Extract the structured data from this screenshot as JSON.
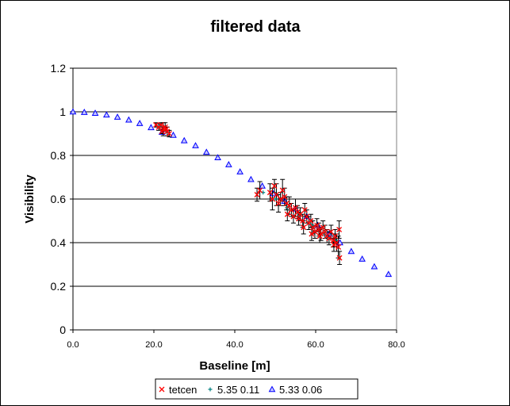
{
  "chart_data": {
    "type": "scatter",
    "title": "filtered data",
    "xlabel": "Baseline [m]",
    "ylabel": "Visibility",
    "xlim": [
      0,
      80
    ],
    "ylim": [
      0,
      1.2
    ],
    "x_ticks": [
      "0.0",
      "20.0",
      "40.0",
      "60.0",
      "80.0"
    ],
    "y_ticks": [
      "0",
      "0.2",
      "0.4",
      "0.6",
      "0.8",
      "1",
      "1.2"
    ],
    "grid": "horizontal",
    "legend_position": "bottom",
    "colors": {
      "tetcen": "#ff0000",
      "s1": "#008080",
      "s2": "#0000ff",
      "errorbar": "#000000"
    },
    "series": [
      {
        "name": "tetcen",
        "marker": "x",
        "points": [
          {
            "x": 20.5,
            "y": 0.94,
            "e": 0.01
          },
          {
            "x": 21.2,
            "y": 0.93,
            "e": 0.015
          },
          {
            "x": 21.8,
            "y": 0.94,
            "e": 0.01
          },
          {
            "x": 22.3,
            "y": 0.92,
            "e": 0.03
          },
          {
            "x": 22.8,
            "y": 0.93,
            "e": 0.02
          },
          {
            "x": 23.3,
            "y": 0.91,
            "e": 0.02
          },
          {
            "x": 23.8,
            "y": 0.9,
            "e": 0.015
          },
          {
            "x": 22.0,
            "y": 0.91,
            "e": 0.01
          },
          {
            "x": 23.0,
            "y": 0.92,
            "e": 0.01
          },
          {
            "x": 45.5,
            "y": 0.62,
            "e": 0.03
          },
          {
            "x": 46.2,
            "y": 0.64,
            "e": 0.04
          },
          {
            "x": 48.7,
            "y": 0.63,
            "e": 0.04
          },
          {
            "x": 49.3,
            "y": 0.6,
            "e": 0.05
          },
          {
            "x": 49.8,
            "y": 0.66,
            "e": 0.03
          },
          {
            "x": 50.3,
            "y": 0.62,
            "e": 0.05
          },
          {
            "x": 50.8,
            "y": 0.58,
            "e": 0.04
          },
          {
            "x": 51.3,
            "y": 0.6,
            "e": 0.03
          },
          {
            "x": 51.8,
            "y": 0.64,
            "e": 0.05
          },
          {
            "x": 52.3,
            "y": 0.61,
            "e": 0.04
          },
          {
            "x": 52.8,
            "y": 0.58,
            "e": 0.03
          },
          {
            "x": 53.5,
            "y": 0.57,
            "e": 0.04
          },
          {
            "x": 54.0,
            "y": 0.55,
            "e": 0.03
          },
          {
            "x": 54.5,
            "y": 0.52,
            "e": 0.03
          },
          {
            "x": 55.0,
            "y": 0.56,
            "e": 0.04
          },
          {
            "x": 55.5,
            "y": 0.54,
            "e": 0.03
          },
          {
            "x": 56.2,
            "y": 0.53,
            "e": 0.03
          },
          {
            "x": 56.8,
            "y": 0.5,
            "e": 0.03
          },
          {
            "x": 57.3,
            "y": 0.55,
            "e": 0.03
          },
          {
            "x": 57.8,
            "y": 0.52,
            "e": 0.03
          },
          {
            "x": 58.3,
            "y": 0.49,
            "e": 0.03
          },
          {
            "x": 58.8,
            "y": 0.5,
            "e": 0.03
          },
          {
            "x": 59.3,
            "y": 0.47,
            "e": 0.03
          },
          {
            "x": 59.8,
            "y": 0.45,
            "e": 0.03
          },
          {
            "x": 60.3,
            "y": 0.48,
            "e": 0.03
          },
          {
            "x": 60.8,
            "y": 0.46,
            "e": 0.03
          },
          {
            "x": 61.3,
            "y": 0.44,
            "e": 0.03
          },
          {
            "x": 61.8,
            "y": 0.47,
            "e": 0.03
          },
          {
            "x": 62.3,
            "y": 0.45,
            "e": 0.03
          },
          {
            "x": 62.8,
            "y": 0.43,
            "e": 0.03
          },
          {
            "x": 63.3,
            "y": 0.42,
            "e": 0.03
          },
          {
            "x": 63.8,
            "y": 0.45,
            "e": 0.03
          },
          {
            "x": 64.3,
            "y": 0.41,
            "e": 0.03
          },
          {
            "x": 64.8,
            "y": 0.43,
            "e": 0.03
          },
          {
            "x": 65.2,
            "y": 0.4,
            "e": 0.04
          },
          {
            "x": 65.6,
            "y": 0.38,
            "e": 0.05
          },
          {
            "x": 65.9,
            "y": 0.33,
            "e": 0.03
          },
          {
            "x": 65.8,
            "y": 0.46,
            "e": 0.04
          },
          {
            "x": 64.5,
            "y": 0.39,
            "e": 0.03
          },
          {
            "x": 59.0,
            "y": 0.44,
            "e": 0.03
          },
          {
            "x": 61.0,
            "y": 0.43,
            "e": 0.03
          },
          {
            "x": 57.0,
            "y": 0.47,
            "e": 0.03
          },
          {
            "x": 55.8,
            "y": 0.51,
            "e": 0.03
          },
          {
            "x": 53.0,
            "y": 0.53,
            "e": 0.03
          }
        ]
      },
      {
        "name": "5.35 0.11",
        "marker": "plus",
        "points": [
          {
            "x": 21.5,
            "y": 0.935
          },
          {
            "x": 23.0,
            "y": 0.915
          },
          {
            "x": 47.0,
            "y": 0.63
          },
          {
            "x": 50.0,
            "y": 0.6
          },
          {
            "x": 53.0,
            "y": 0.56
          },
          {
            "x": 56.0,
            "y": 0.52
          },
          {
            "x": 59.0,
            "y": 0.48
          },
          {
            "x": 62.0,
            "y": 0.44
          },
          {
            "x": 65.0,
            "y": 0.41
          }
        ]
      },
      {
        "name": "5.33 0.06",
        "marker": "triangle",
        "points": [
          {
            "x": 0.0,
            "y": 1.0
          },
          {
            "x": 2.8,
            "y": 0.998
          },
          {
            "x": 5.5,
            "y": 0.994
          },
          {
            "x": 8.3,
            "y": 0.986
          },
          {
            "x": 11.0,
            "y": 0.976
          },
          {
            "x": 13.8,
            "y": 0.963
          },
          {
            "x": 16.5,
            "y": 0.947
          },
          {
            "x": 19.3,
            "y": 0.928
          },
          {
            "x": 22.0,
            "y": 0.907
          },
          {
            "x": 24.8,
            "y": 0.893
          },
          {
            "x": 27.5,
            "y": 0.868
          },
          {
            "x": 30.3,
            "y": 0.845
          },
          {
            "x": 33.0,
            "y": 0.815
          },
          {
            "x": 35.8,
            "y": 0.79
          },
          {
            "x": 38.5,
            "y": 0.758
          },
          {
            "x": 41.3,
            "y": 0.725
          },
          {
            "x": 44.0,
            "y": 0.69
          },
          {
            "x": 46.8,
            "y": 0.66
          },
          {
            "x": 49.5,
            "y": 0.625
          },
          {
            "x": 52.3,
            "y": 0.59
          },
          {
            "x": 55.0,
            "y": 0.555
          },
          {
            "x": 57.8,
            "y": 0.52
          },
          {
            "x": 60.5,
            "y": 0.48
          },
          {
            "x": 63.3,
            "y": 0.44
          },
          {
            "x": 66.0,
            "y": 0.4
          },
          {
            "x": 68.8,
            "y": 0.36
          },
          {
            "x": 71.5,
            "y": 0.325
          },
          {
            "x": 74.5,
            "y": 0.29
          },
          {
            "x": 78.0,
            "y": 0.255
          }
        ]
      }
    ]
  }
}
